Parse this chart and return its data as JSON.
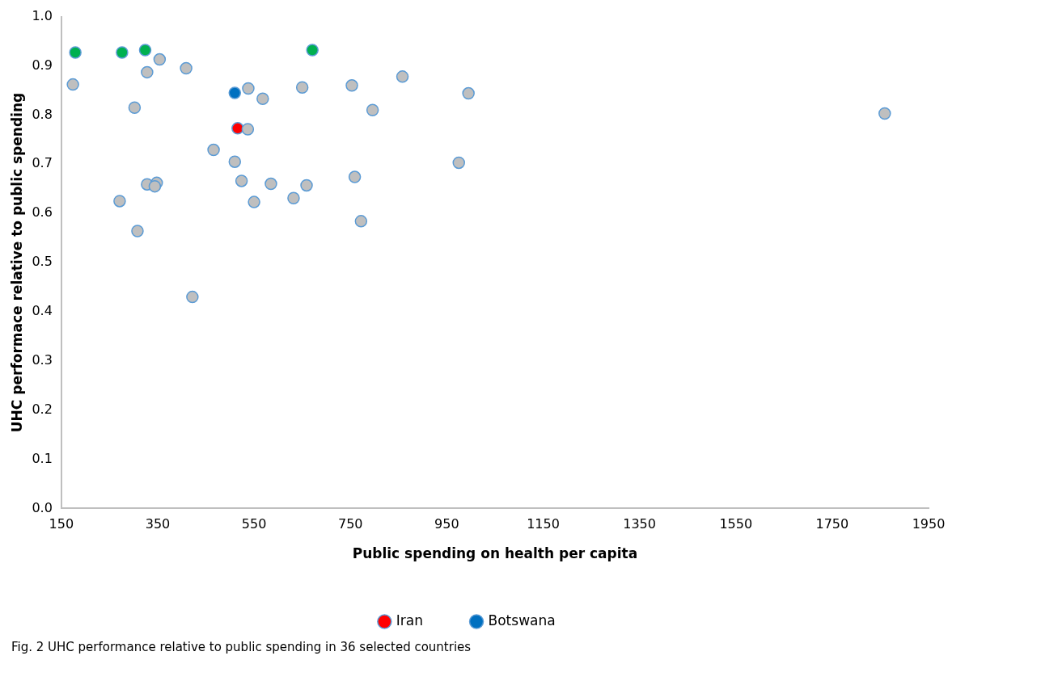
{
  "chart_data": {
    "type": "scatter",
    "xlabel": "Public spending on health per capita",
    "ylabel": "UHC performace relative to public spending",
    "annotations": [
      "Fig. 2  UHC performance relative to public spending in 36 selected countries"
    ],
    "xlim": [
      150,
      1950
    ],
    "xticks": [
      150,
      350,
      550,
      750,
      950,
      1150,
      1350,
      1550,
      1750,
      1950
    ],
    "ylim": [
      0,
      1
    ],
    "yticks": [
      {
        "value": 0,
        "label": "0.0"
      },
      {
        "value": 0.1,
        "label": "0.1"
      },
      {
        "value": 0.2,
        "label": "0.2"
      },
      {
        "value": 0.3,
        "label": "0.3"
      },
      {
        "value": 0.4,
        "label": "0.4"
      },
      {
        "value": 0.5,
        "label": "0.5"
      },
      {
        "value": 0.6,
        "label": "0.6"
      },
      {
        "value": 0.7,
        "label": "0.7"
      },
      {
        "value": 0.8,
        "label": "0.8"
      },
      {
        "value": 0.9,
        "label": "0.9"
      },
      {
        "value": 1,
        "label": "1.0"
      }
    ],
    "grid": false,
    "legend": "bottom",
    "marker": "circle",
    "series": [
      {
        "color": "#bfbfbf",
        "x": [
          354,
          409,
          328,
          174,
          538,
          568,
          650,
          753,
          858,
          995,
          302,
          796,
          537,
          466,
          510,
          975,
          759,
          328,
          348,
          344,
          524,
          585,
          659,
          271,
          550,
          632,
          772,
          308,
          422,
          1859
        ],
        "values": [
          0.913,
          0.895,
          0.887,
          0.862,
          0.854,
          0.833,
          0.856,
          0.86,
          0.878,
          0.844,
          0.815,
          0.81,
          0.771,
          0.729,
          0.705,
          0.703,
          0.674,
          0.659,
          0.662,
          0.655,
          0.666,
          0.66,
          0.657,
          0.625,
          0.623,
          0.631,
          0.584,
          0.564,
          0.43,
          0.803
        ]
      },
      {
        "color": "#00b050",
        "x": [
          179,
          276,
          324,
          671
        ],
        "values": [
          0.927,
          0.927,
          0.932,
          0.932
        ]
      },
      {
        "name": "Iran",
        "color": "#ff0000",
        "x": [
          516
        ],
        "values": [
          0.773
        ]
      },
      {
        "name": "Botswana",
        "color": "#0070c0",
        "x": [
          510
        ],
        "values": [
          0.845
        ]
      }
    ]
  }
}
